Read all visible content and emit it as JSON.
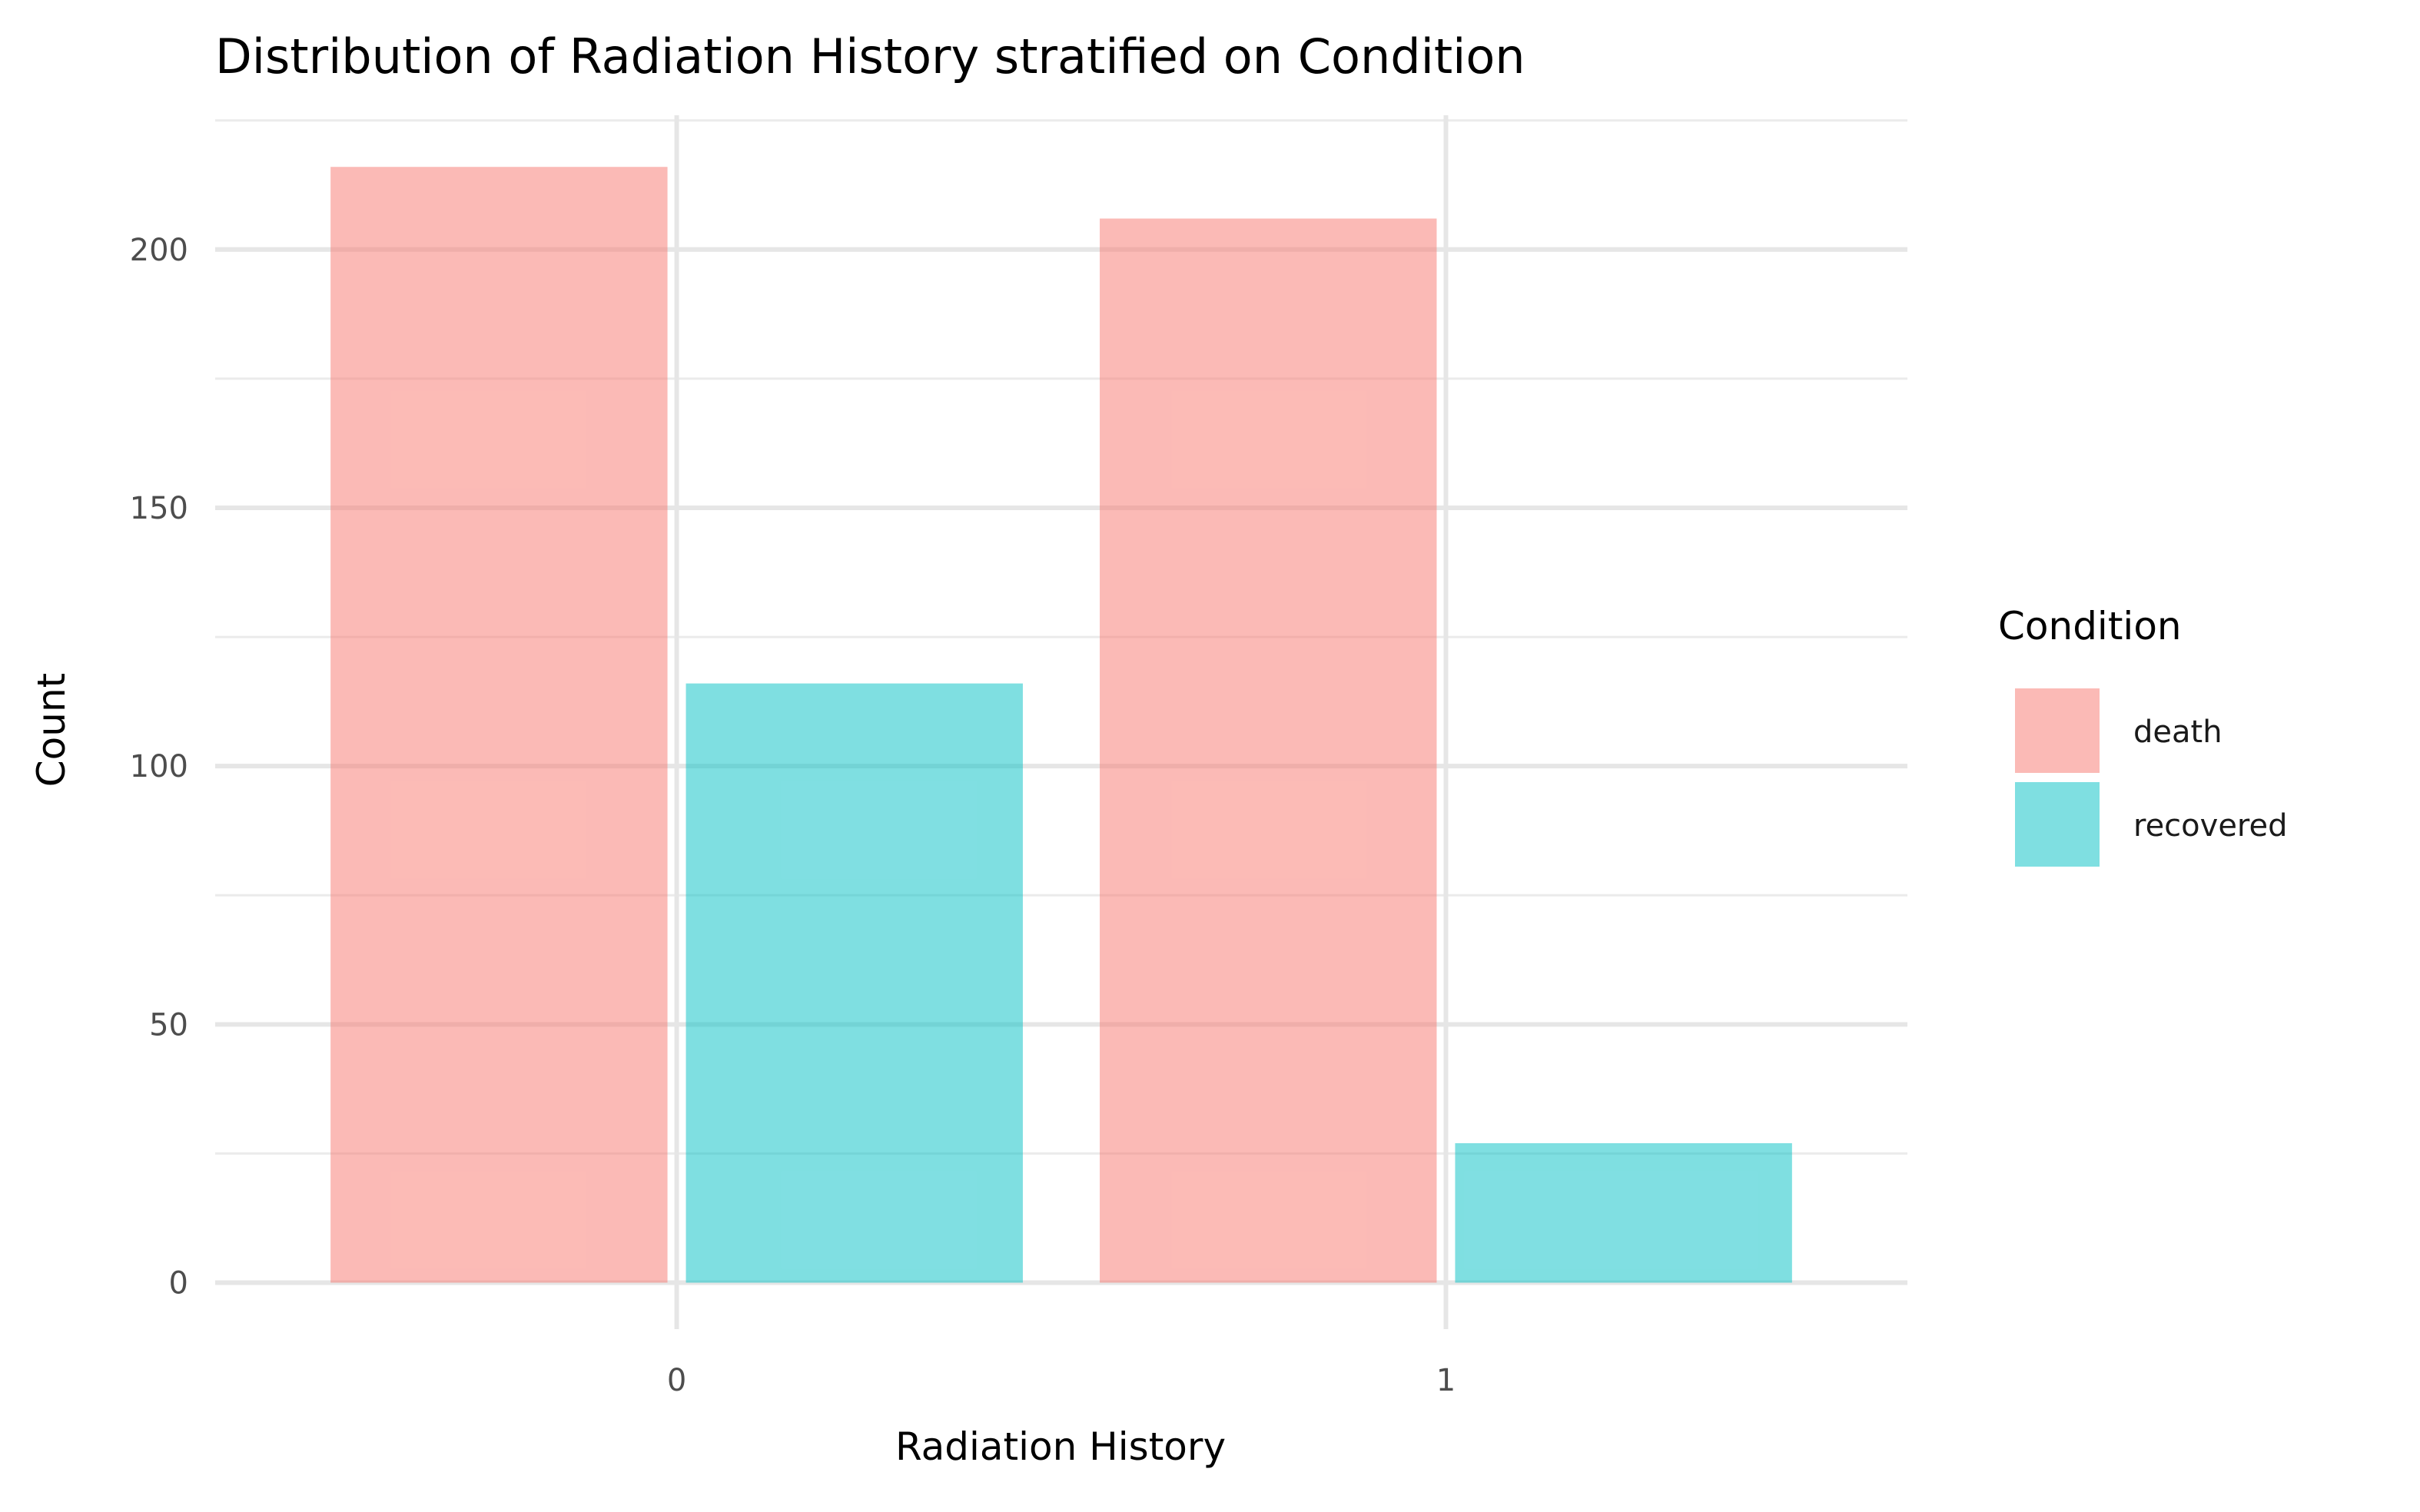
{
  "chart_data": {
    "type": "bar",
    "title": "Distribution of Radiation History stratified on Condition",
    "xlabel": "Radiation History",
    "ylabel": "Count",
    "categories": [
      "0",
      "1"
    ],
    "series": [
      {
        "name": "death",
        "values": [
          216,
          206
        ],
        "color": "#F8766D"
      },
      {
        "name": "recovered",
        "values": [
          116,
          27
        ],
        "color": "#00BFC4"
      }
    ],
    "ylim": [
      -9,
      226
    ],
    "yticks": [
      0,
      50,
      100,
      150,
      200
    ],
    "grid": true,
    "bar_opacity": 0.5,
    "legend": {
      "title": "Condition",
      "placement": "right"
    }
  }
}
